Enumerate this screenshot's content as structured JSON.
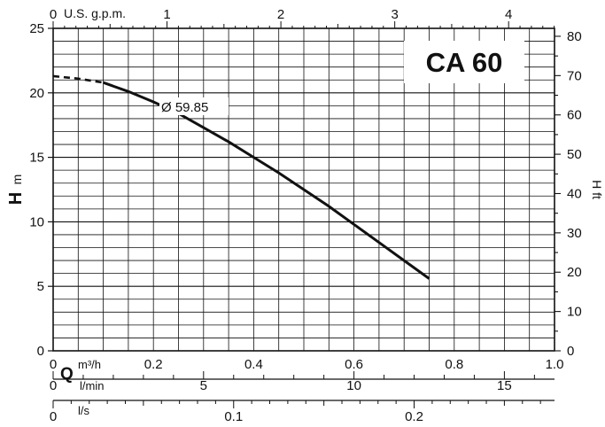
{
  "chart_data": {
    "type": "line",
    "title": "CA 60",
    "series": [
      {
        "name": "Ø 59.85",
        "x": [
          0.0,
          0.05,
          0.1,
          0.15,
          0.2,
          0.25,
          0.3,
          0.35,
          0.4,
          0.45,
          0.5,
          0.55,
          0.6,
          0.65,
          0.7,
          0.75
        ],
        "y": [
          21.3,
          21.1,
          20.8,
          20.1,
          19.3,
          18.4,
          17.3,
          16.2,
          15.0,
          13.8,
          12.5,
          11.2,
          9.8,
          8.4,
          7.0,
          5.6
        ],
        "dashed_until_x": 0.1
      }
    ],
    "left_axis": {
      "label_bold": "H",
      "label_unit": "m",
      "ticks": [
        "0",
        "5",
        "10",
        "15",
        "20",
        "25"
      ],
      "ylim": [
        0,
        25
      ]
    },
    "right_axis": {
      "label": "H ft",
      "ticks": [
        "0",
        "10",
        "20",
        "30",
        "40",
        "50",
        "60",
        "70",
        "80"
      ],
      "ylim": [
        0,
        82.02
      ]
    },
    "top_axis": {
      "label": "U.S. g.p.m.",
      "ticks": [
        "0",
        "1",
        "2",
        "3",
        "4"
      ]
    },
    "bottom_axes": {
      "q_label": "Q",
      "m3h": {
        "unit": "m³/h",
        "ticks": [
          "0",
          "0.2",
          "0.4",
          "0.6",
          "0.8",
          "1.0"
        ],
        "xlim": [
          0,
          1.0
        ]
      },
      "lmin": {
        "unit": "l/min",
        "ticks": [
          "0",
          "5",
          "10",
          "15"
        ]
      },
      "ls": {
        "unit": "l/s",
        "ticks": [
          "0",
          "0.1",
          "0.2"
        ]
      }
    },
    "grid": true
  }
}
